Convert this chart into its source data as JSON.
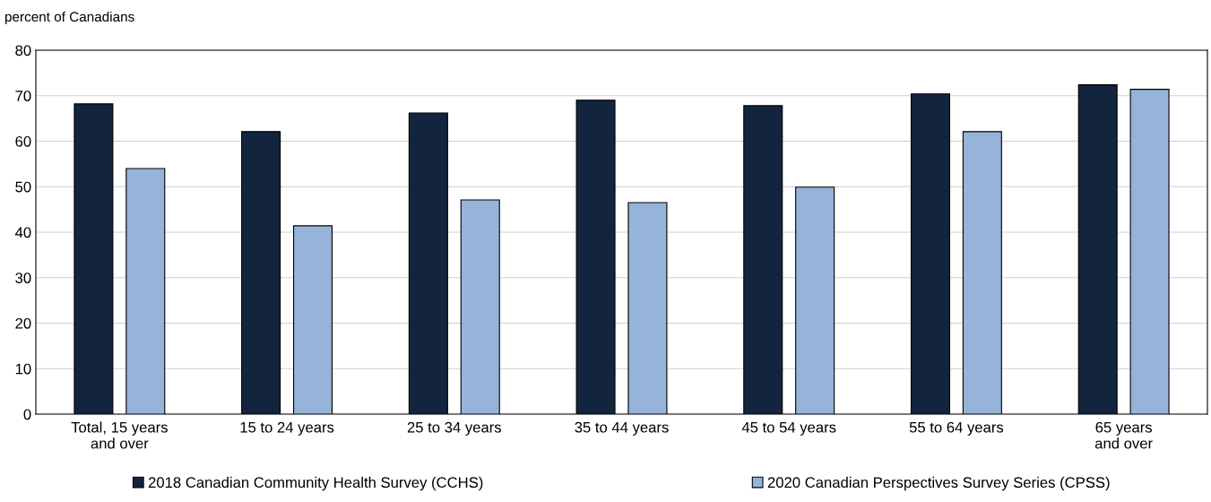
{
  "chart_data": {
    "type": "bar",
    "ylabel": "percent of Canadians",
    "categories": [
      "Total, 15 years\nand over",
      "15 to 24 years",
      "25 to 34 years",
      "35 to 44 years",
      "45 to 54 years",
      "55 to 64 years",
      "65 years\nand over"
    ],
    "series": [
      {
        "name": "2018 Canadian Community Health Survey (CCHS)",
        "color": "#13243f",
        "values": [
          68.2,
          62.1,
          66.2,
          69.0,
          67.8,
          70.4,
          72.4
        ]
      },
      {
        "name": "2020 Canadian Perspectives Survey Series (CPSS)",
        "color": "#96b3d9",
        "values": [
          54.0,
          41.4,
          47.1,
          46.5,
          49.9,
          62.1,
          71.4
        ]
      }
    ],
    "ylim": [
      0,
      80
    ],
    "yticks": [
      0,
      10,
      20,
      30,
      40,
      50,
      60,
      70,
      80
    ],
    "grid": "y",
    "legend": "bottom"
  }
}
